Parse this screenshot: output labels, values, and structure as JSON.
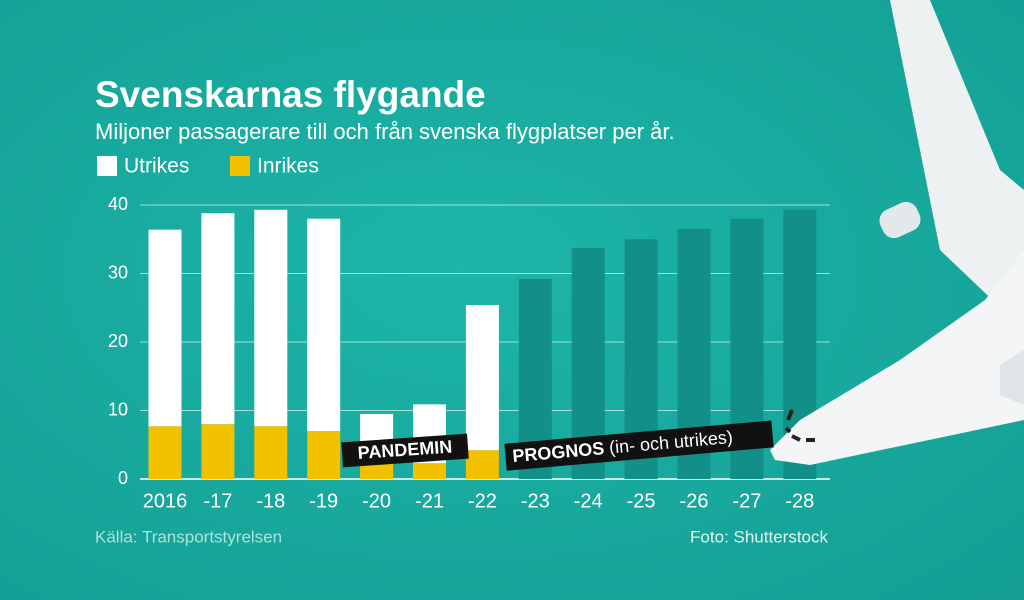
{
  "chart_data": {
    "type": "bar",
    "title": "Svenskarnas flygande",
    "subtitle": "Miljoner passagerare till och från svenska flygplatser per år.",
    "categories": [
      "2016",
      "-17",
      "-18",
      "-19",
      "-20",
      "-21",
      "-22",
      "-23",
      "-24",
      "-25",
      "-26",
      "-27",
      "-28"
    ],
    "series": [
      {
        "name": "Utrikes",
        "color": "#ffffff",
        "values": [
          28.7,
          30.8,
          31.6,
          31.0,
          7.3,
          8.6,
          21.2,
          null,
          null,
          null,
          null,
          null,
          null
        ]
      },
      {
        "name": "Inrikes",
        "color": "#f2c200",
        "values": [
          7.7,
          8.0,
          7.7,
          7.0,
          2.2,
          2.3,
          4.2,
          null,
          null,
          null,
          null,
          null,
          null
        ]
      }
    ],
    "forecast": {
      "color": "#128f86",
      "values": [
        null,
        null,
        null,
        null,
        null,
        null,
        null,
        29.2,
        33.7,
        35.0,
        36.5,
        38.0,
        39.3
      ]
    },
    "ylim": [
      0,
      40
    ],
    "yticks": [
      0,
      10,
      20,
      30,
      40
    ],
    "grid": true,
    "annotations": {
      "pandemic": "PANDEMIN",
      "forecast": "PROGNOS",
      "forecast_note": "(in- och utrikes)"
    },
    "source": "Källa: Transportstyrelsen",
    "photo": "Foto: Shutterstock"
  }
}
